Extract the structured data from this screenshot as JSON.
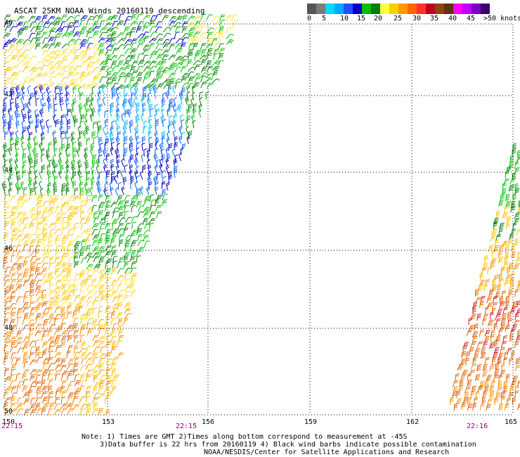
{
  "title": "ASCAT 25KM NOAA Winds 20160119 descending",
  "legend": {
    "colors": [
      "#555555",
      "#7a7a7a",
      "#00d8ff",
      "#00a8ff",
      "#2050ff",
      "#0000c8",
      "#00c000",
      "#008000",
      "#ffff40",
      "#ffd000",
      "#ff9900",
      "#ff6600",
      "#ff3030",
      "#c00020",
      "#8b4513",
      "#603010",
      "#ff00ff",
      "#c000ff",
      "#8000c0",
      "#3a0070"
    ],
    "labels": [
      "0",
      "5",
      "10",
      "15",
      "20",
      "25",
      "30",
      "35",
      "40",
      "45",
      ">50 knots"
    ]
  },
  "axes": {
    "lat_labels": [
      "40",
      "42",
      "44",
      "46",
      "48",
      "50"
    ],
    "lon_labels": [
      "150",
      "153",
      "156",
      "159",
      "162",
      "165"
    ],
    "time_labels": [
      "22:15",
      "22:15",
      "22:16"
    ]
  },
  "notes": [
    "Note: 1) Times are GMT 2)Times along bottom correspond to measurement at -45S",
    "3)Data buffer is 22 hrs from 20160119 4) Black wind barbs indicate possible contamination",
    "NOAA/NESDIS/Center for Satellite Applications and Research"
  ],
  "barb_colors": {
    "dark_blue": "#0000c0",
    "blue": "#0060ff",
    "cyan": "#00b8ff",
    "light_green": "#00c000",
    "dark_green": "#008000",
    "yellow": "#ffe030",
    "gold": "#ffc000",
    "orange": "#ff9000",
    "dark_orange": "#e06000",
    "red": "#d02020",
    "black": "#000000"
  }
}
